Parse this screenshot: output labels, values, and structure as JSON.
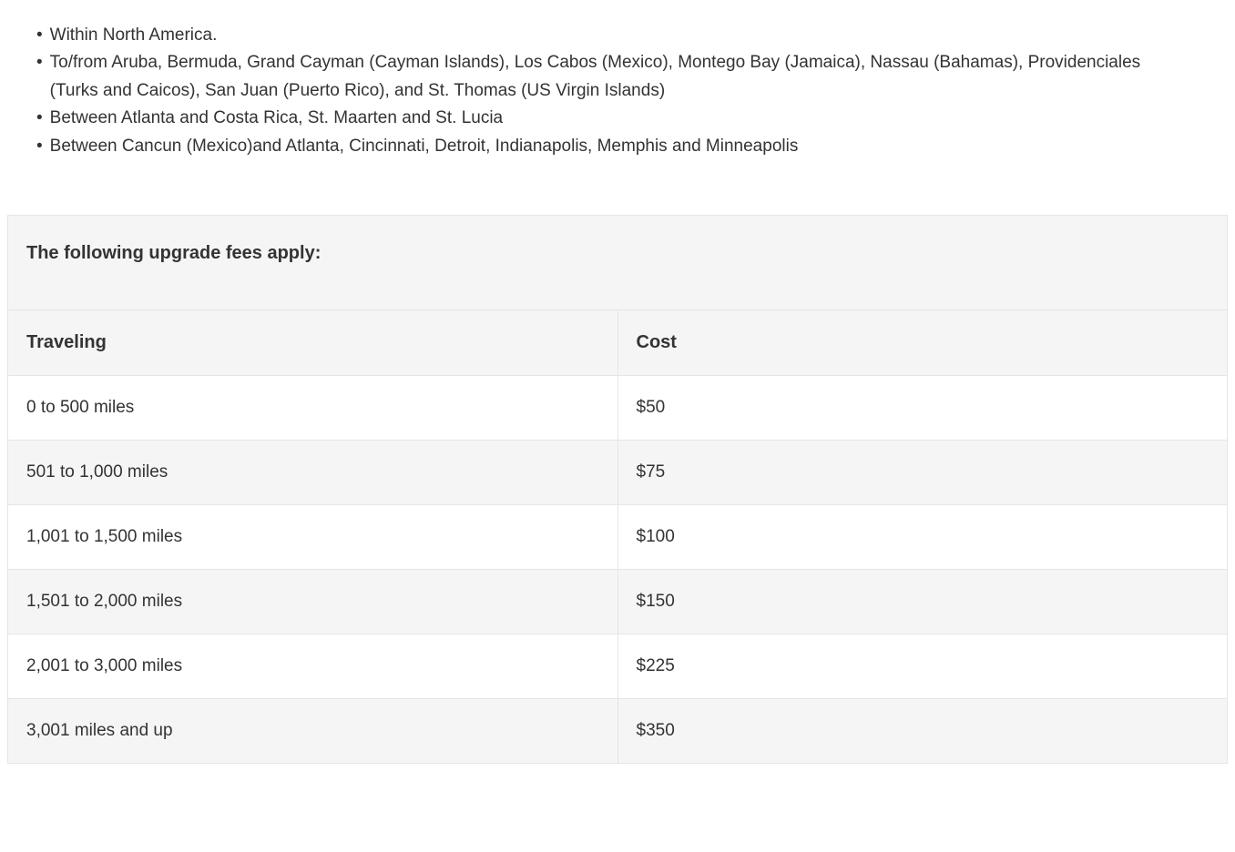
{
  "bullets": {
    "items": [
      "Within North America.",
      "To/from Aruba, Bermuda, Grand Cayman (Cayman Islands), Los Cabos (Mexico), Montego Bay (Jamaica), Nassau (Bahamas), Providenciales (Turks and Caicos), San Juan (Puerto Rico), and St. Thomas (US Virgin Islands)",
      "Between Atlanta and Costa Rica, St. Maarten and St. Lucia",
      "Between Cancun (Mexico)and Atlanta, Cincinnati, Detroit, Indianapolis, Memphis and Minneapolis"
    ]
  },
  "table": {
    "title": "The following upgrade fees apply:",
    "columns": [
      "Traveling",
      "Cost"
    ],
    "rows": [
      [
        "0 to 500 miles",
        "$50"
      ],
      [
        "501 to 1,000 miles",
        "$75"
      ],
      [
        "1,001 to 1,500 miles",
        "$100"
      ],
      [
        "1,501 to 2,000 miles",
        "$150"
      ],
      [
        "2,001 to 3,000 miles",
        "$225"
      ],
      [
        "3,001 miles and up",
        "$350"
      ]
    ],
    "styling": {
      "header_bg": "#f5f5f5",
      "row_odd_bg": "#ffffff",
      "row_even_bg": "#f5f5f5",
      "border_color": "#e5e5e5",
      "text_color": "#333333",
      "font_size_header": 20,
      "font_size_cell": 19,
      "col1_width_percent": 50
    }
  }
}
